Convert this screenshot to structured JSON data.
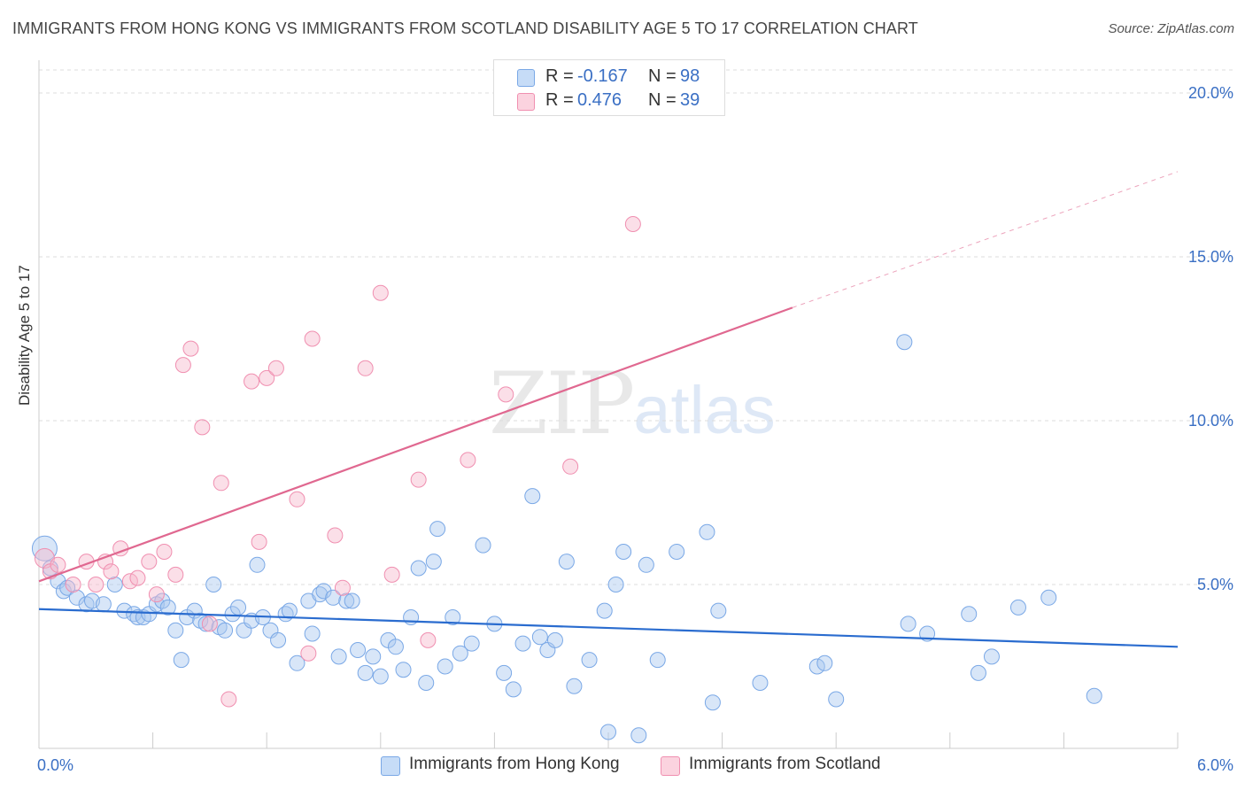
{
  "title": "IMMIGRANTS FROM HONG KONG VS IMMIGRANTS FROM SCOTLAND DISABILITY AGE 5 TO 17 CORRELATION CHART",
  "source": "Source: ZipAtlas.com",
  "watermark": {
    "zip": "ZIP",
    "atlas": "atlas"
  },
  "legend": {
    "rows": [
      {
        "r_label": "R =",
        "r_value": "-0.167",
        "n_label": "N =",
        "n_value": "98",
        "color": "#a9c8f0"
      },
      {
        "r_label": "R =",
        "r_value": "0.476",
        "n_label": "N =",
        "n_value": "39",
        "color": "#f6b8cb"
      }
    ]
  },
  "bottom_legend": [
    {
      "label": "Immigrants from Hong Kong",
      "color": "#a9c8f0"
    },
    {
      "label": "Immigrants from Scotland",
      "color": "#f6b8cb"
    }
  ],
  "chart_data": {
    "type": "scatter",
    "ylabel": "Disability Age 5 to 17",
    "xlim": [
      0,
      6.0
    ],
    "ylim": [
      0,
      21
    ],
    "x_tick_labels": [
      {
        "value": 0,
        "label": "0.0%"
      },
      {
        "value": 6.0,
        "label": "6.0%"
      }
    ],
    "y_tick_labels": [
      {
        "value": 5,
        "label": "5.0%"
      },
      {
        "value": 10,
        "label": "10.0%"
      },
      {
        "value": 15,
        "label": "15.0%"
      },
      {
        "value": 20,
        "label": "20.0%"
      }
    ],
    "grid": true,
    "legend_position": "top-center",
    "series": [
      {
        "name": "Immigrants from Hong Kong",
        "color": "#7aa8e6",
        "line_color": "#2a6ccf",
        "trend": {
          "x": [
            0.0,
            6.0
          ],
          "y": [
            4.25,
            3.1
          ]
        },
        "points": [
          [
            0.03,
            6.1
          ],
          [
            0.06,
            5.5
          ],
          [
            0.1,
            5.1
          ],
          [
            0.13,
            4.8
          ],
          [
            0.15,
            4.9
          ],
          [
            0.2,
            4.6
          ],
          [
            0.25,
            4.4
          ],
          [
            0.28,
            4.5
          ],
          [
            0.34,
            4.4
          ],
          [
            0.4,
            5.0
          ],
          [
            0.45,
            4.2
          ],
          [
            0.5,
            4.1
          ],
          [
            0.52,
            4.0
          ],
          [
            0.55,
            4.0
          ],
          [
            0.58,
            4.1
          ],
          [
            0.62,
            4.4
          ],
          [
            0.65,
            4.5
          ],
          [
            0.68,
            4.3
          ],
          [
            0.72,
            3.6
          ],
          [
            0.75,
            2.7
          ],
          [
            0.78,
            4.0
          ],
          [
            0.82,
            4.2
          ],
          [
            0.85,
            3.9
          ],
          [
            0.88,
            3.8
          ],
          [
            0.92,
            5.0
          ],
          [
            0.95,
            3.7
          ],
          [
            0.98,
            3.6
          ],
          [
            1.02,
            4.1
          ],
          [
            1.05,
            4.3
          ],
          [
            1.08,
            3.6
          ],
          [
            1.12,
            3.9
          ],
          [
            1.15,
            5.6
          ],
          [
            1.18,
            4.0
          ],
          [
            1.22,
            3.6
          ],
          [
            1.26,
            3.3
          ],
          [
            1.3,
            4.1
          ],
          [
            1.32,
            4.2
          ],
          [
            1.36,
            2.6
          ],
          [
            1.42,
            4.5
          ],
          [
            1.44,
            3.5
          ],
          [
            1.48,
            4.7
          ],
          [
            1.5,
            4.8
          ],
          [
            1.55,
            4.6
          ],
          [
            1.58,
            2.8
          ],
          [
            1.62,
            4.5
          ],
          [
            1.65,
            4.5
          ],
          [
            1.68,
            3.0
          ],
          [
            1.72,
            2.3
          ],
          [
            1.76,
            2.8
          ],
          [
            1.8,
            2.2
          ],
          [
            1.84,
            3.3
          ],
          [
            1.88,
            3.1
          ],
          [
            1.92,
            2.4
          ],
          [
            1.96,
            4.0
          ],
          [
            2.0,
            5.5
          ],
          [
            2.04,
            2.0
          ],
          [
            2.08,
            5.7
          ],
          [
            2.1,
            6.7
          ],
          [
            2.14,
            2.5
          ],
          [
            2.18,
            4.0
          ],
          [
            2.22,
            2.9
          ],
          [
            2.28,
            3.2
          ],
          [
            2.34,
            6.2
          ],
          [
            2.4,
            3.8
          ],
          [
            2.45,
            2.3
          ],
          [
            2.5,
            1.8
          ],
          [
            2.55,
            3.2
          ],
          [
            2.6,
            7.7
          ],
          [
            2.64,
            3.4
          ],
          [
            2.68,
            3.0
          ],
          [
            2.72,
            3.3
          ],
          [
            2.78,
            5.7
          ],
          [
            2.82,
            1.9
          ],
          [
            2.9,
            2.7
          ],
          [
            2.98,
            4.2
          ],
          [
            3.0,
            0.5
          ],
          [
            3.04,
            5.0
          ],
          [
            3.08,
            6.0
          ],
          [
            3.16,
            0.4
          ],
          [
            3.2,
            5.6
          ],
          [
            3.26,
            2.7
          ],
          [
            3.36,
            6.0
          ],
          [
            3.52,
            6.6
          ],
          [
            3.55,
            1.4
          ],
          [
            3.58,
            4.2
          ],
          [
            3.8,
            2.0
          ],
          [
            4.1,
            2.5
          ],
          [
            4.14,
            2.6
          ],
          [
            4.2,
            1.5
          ],
          [
            4.56,
            12.4
          ],
          [
            4.58,
            3.8
          ],
          [
            4.68,
            3.5
          ],
          [
            4.9,
            4.1
          ],
          [
            4.95,
            2.3
          ],
          [
            5.02,
            2.8
          ],
          [
            5.16,
            4.3
          ],
          [
            5.32,
            4.6
          ],
          [
            5.56,
            1.6
          ]
        ]
      },
      {
        "name": "Immigrants from Scotland",
        "color": "#f08fb0",
        "line_color": "#e06890",
        "trend": {
          "x": [
            0.0,
            3.97
          ],
          "y": [
            5.1,
            13.45
          ]
        },
        "trend_extension": {
          "x": [
            3.97,
            6.0
          ],
          "y": [
            13.45,
            17.6
          ]
        },
        "points": [
          [
            0.03,
            5.8
          ],
          [
            0.06,
            5.4
          ],
          [
            0.1,
            5.6
          ],
          [
            0.18,
            5.0
          ],
          [
            0.25,
            5.7
          ],
          [
            0.3,
            5.0
          ],
          [
            0.35,
            5.7
          ],
          [
            0.38,
            5.4
          ],
          [
            0.43,
            6.1
          ],
          [
            0.48,
            5.1
          ],
          [
            0.52,
            5.2
          ],
          [
            0.58,
            5.7
          ],
          [
            0.62,
            4.7
          ],
          [
            0.66,
            6.0
          ],
          [
            0.72,
            5.3
          ],
          [
            0.76,
            11.7
          ],
          [
            0.8,
            12.2
          ],
          [
            0.86,
            9.8
          ],
          [
            0.9,
            3.8
          ],
          [
            0.96,
            8.1
          ],
          [
            1.0,
            1.5
          ],
          [
            1.12,
            11.2
          ],
          [
            1.16,
            6.3
          ],
          [
            1.2,
            11.3
          ],
          [
            1.25,
            11.6
          ],
          [
            1.36,
            7.6
          ],
          [
            1.42,
            2.9
          ],
          [
            1.44,
            12.5
          ],
          [
            1.56,
            6.5
          ],
          [
            1.6,
            4.9
          ],
          [
            1.72,
            11.6
          ],
          [
            1.8,
            13.9
          ],
          [
            1.86,
            5.3
          ],
          [
            2.0,
            8.2
          ],
          [
            2.05,
            3.3
          ],
          [
            2.26,
            8.8
          ],
          [
            2.46,
            10.8
          ],
          [
            2.8,
            8.6
          ],
          [
            3.13,
            16.0
          ]
        ]
      }
    ]
  }
}
